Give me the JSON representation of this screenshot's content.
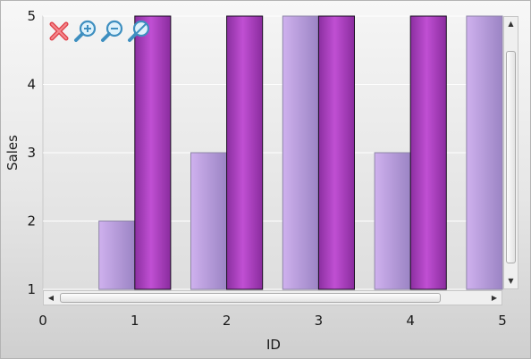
{
  "chart_data": {
    "type": "bar",
    "xlabel": "ID",
    "ylabel": "Sales",
    "categories": [
      1,
      2,
      3,
      4,
      5
    ],
    "x_ticks": [
      "0",
      "1",
      "2",
      "3",
      "4",
      "5"
    ],
    "y_ticks": [
      "1",
      "2",
      "3",
      "4",
      "5"
    ],
    "xlim": [
      0,
      5
    ],
    "ylim": [
      1,
      5
    ],
    "grid": true,
    "series": [
      {
        "values": [
          2,
          3,
          5,
          3,
          5
        ],
        "color": "#c3a3e6"
      },
      {
        "values": [
          5,
          5,
          5,
          5,
          null
        ],
        "color": "#a93ec1"
      }
    ]
  },
  "toolbar": {
    "icons": [
      "close-icon",
      "zoom-in-icon",
      "zoom-out-icon",
      "zoom-reset-icon"
    ]
  },
  "scrollbars": {
    "vertical": true,
    "horizontal": true
  }
}
